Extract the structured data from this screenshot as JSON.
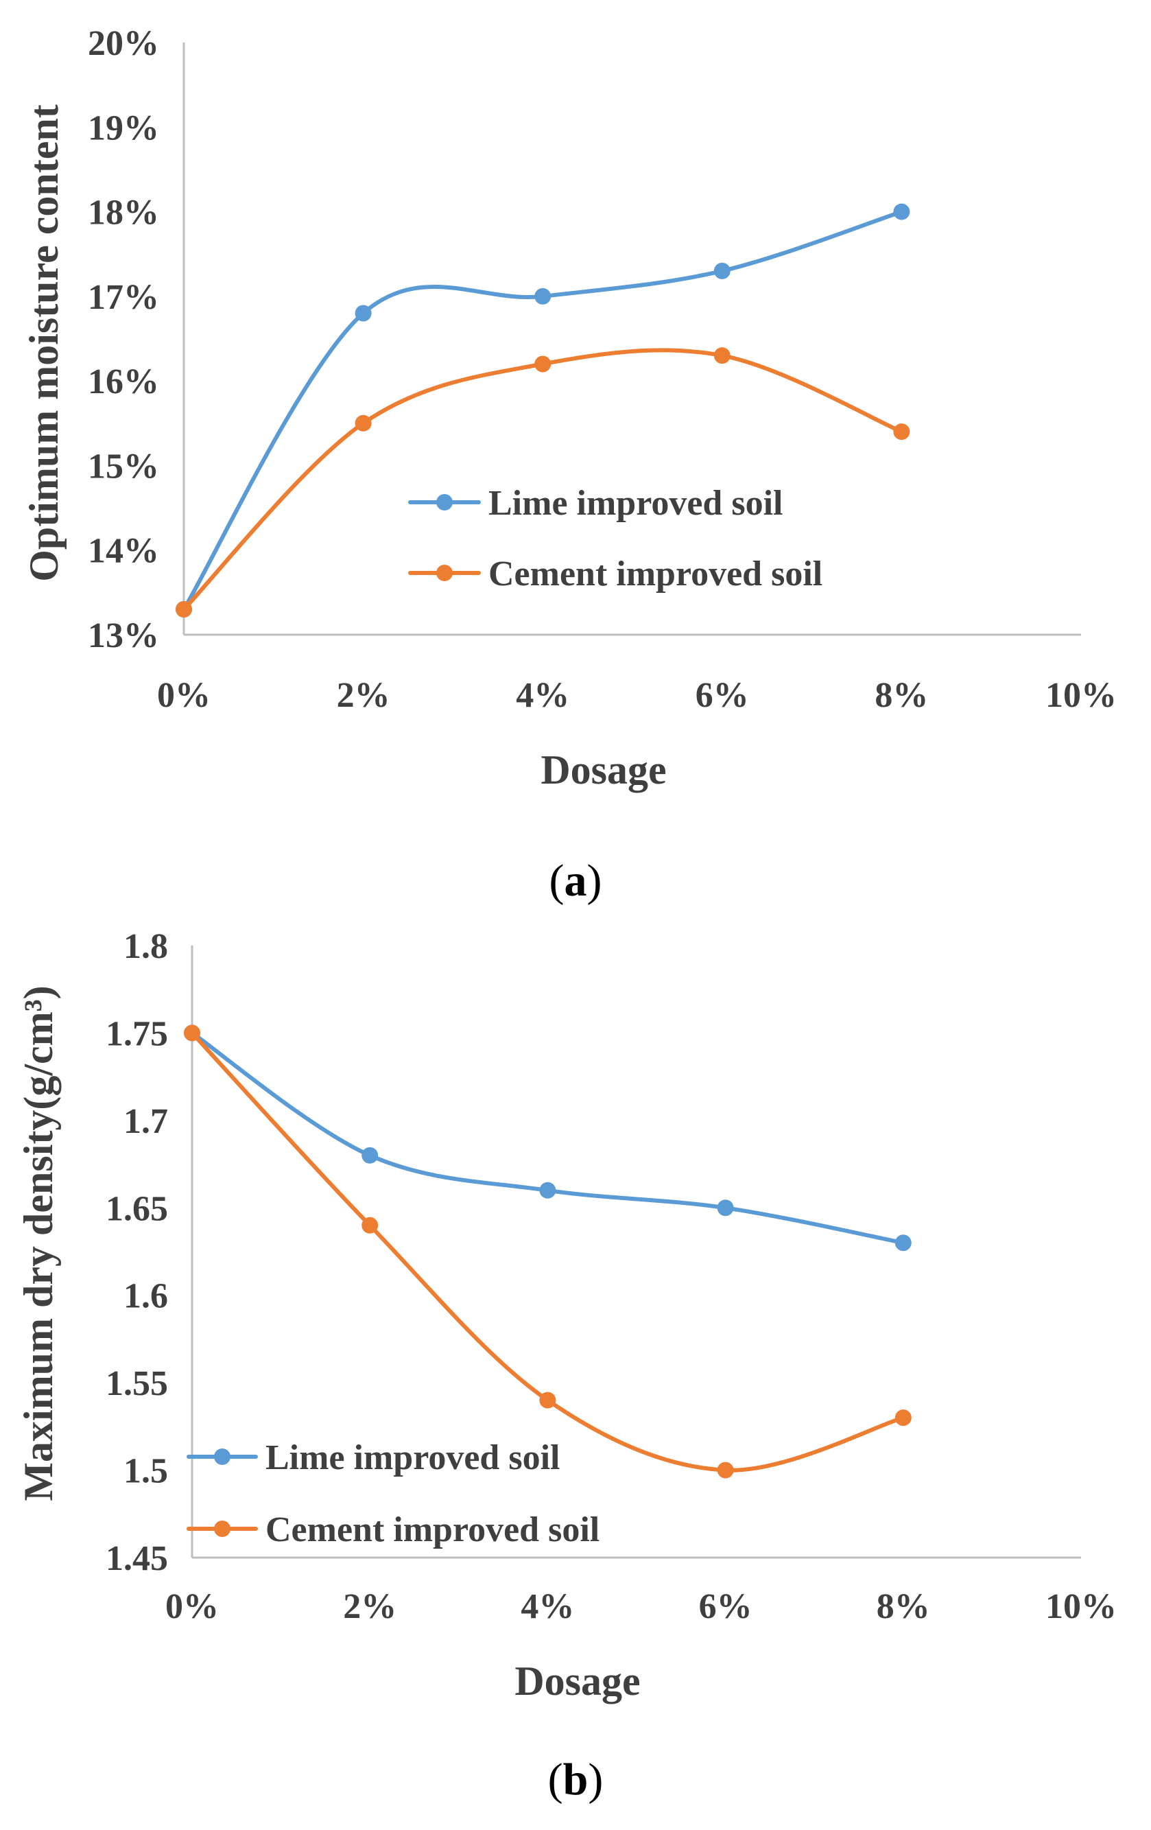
{
  "chart_data": [
    {
      "id": "a",
      "type": "line",
      "panel_label": "a",
      "xlabel": "Dosage",
      "ylabel": "Optimum moisture content",
      "categories": [
        "0%",
        "2%",
        "4%",
        "6%",
        "8%",
        "10%"
      ],
      "x": [
        0,
        2,
        4,
        6,
        8
      ],
      "xlim": [
        0,
        10
      ],
      "ylim": [
        13,
        20
      ],
      "y_ticks": [
        13,
        14,
        15,
        16,
        17,
        18,
        19,
        20
      ],
      "y_tick_labels": [
        "13%",
        "14%",
        "15%",
        "16%",
        "17%",
        "18%",
        "19%",
        "20%"
      ],
      "series": [
        {
          "name": "Lime improved soil",
          "color": "#5b9bd5",
          "values": [
            13.3,
            16.8,
            17.0,
            17.3,
            18.0
          ]
        },
        {
          "name": "Cement improved soil",
          "color": "#ed7d31",
          "values": [
            13.3,
            15.5,
            16.2,
            16.3,
            15.4
          ]
        }
      ],
      "legend": "center-right",
      "grid": false
    },
    {
      "id": "b",
      "type": "line",
      "panel_label": "b",
      "xlabel": "Dosage",
      "ylabel": "Maximum dry density(g/cm³)",
      "categories": [
        "0%",
        "2%",
        "4%",
        "6%",
        "8%",
        "10%"
      ],
      "x": [
        0,
        2,
        4,
        6,
        8
      ],
      "xlim": [
        0,
        10
      ],
      "ylim": [
        1.45,
        1.8
      ],
      "y_ticks": [
        1.45,
        1.5,
        1.55,
        1.6,
        1.65,
        1.7,
        1.75,
        1.8
      ],
      "y_tick_labels": [
        "1.45",
        "1.5",
        "1.55",
        "1.6",
        "1.65",
        "1.7",
        "1.75",
        "1.8"
      ],
      "series": [
        {
          "name": "Lime improved soil",
          "color": "#5b9bd5",
          "values": [
            1.75,
            1.68,
            1.66,
            1.65,
            1.63
          ]
        },
        {
          "name": "Cement improved soil",
          "color": "#ed7d31",
          "values": [
            1.75,
            1.64,
            1.54,
            1.5,
            1.53
          ]
        }
      ],
      "legend": "bottom-left",
      "grid": false
    }
  ]
}
